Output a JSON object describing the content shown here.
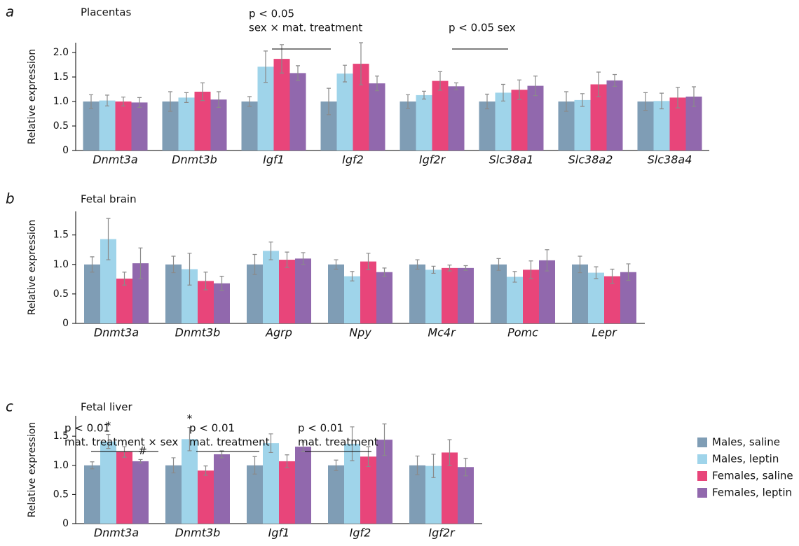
{
  "chart_data": [
    {
      "type": "bar",
      "panel": "a",
      "title": "Placentas",
      "ylabel": "Relative expression",
      "categories": [
        "Dnmt3a",
        "Dnmt3b",
        "Igf1",
        "Igf2",
        "Igf2r",
        "Slc38a1",
        "Slc38a2",
        "Slc38a4"
      ],
      "series": [
        {
          "color": "#7f9db5",
          "values": [
            1.0,
            1.0,
            1.0,
            1.0,
            1.0,
            1.0,
            1.0,
            1.0
          ],
          "errors": [
            0.14,
            0.2,
            0.1,
            0.27,
            0.14,
            0.15,
            0.2,
            0.18
          ]
        },
        {
          "color": "#9fd4ea",
          "values": [
            1.02,
            1.08,
            1.71,
            1.57,
            1.13,
            1.18,
            1.03,
            1.01
          ],
          "errors": [
            0.11,
            0.1,
            0.32,
            0.17,
            0.08,
            0.17,
            0.13,
            0.16
          ]
        },
        {
          "color": "#e8457a",
          "values": [
            1.0,
            1.2,
            1.87,
            1.77,
            1.42,
            1.24,
            1.35,
            1.08
          ],
          "errors": [
            0.09,
            0.18,
            0.29,
            0.43,
            0.19,
            0.2,
            0.25,
            0.21
          ]
        },
        {
          "color": "#9168ad",
          "values": [
            0.98,
            1.04,
            1.58,
            1.37,
            1.31,
            1.32,
            1.43,
            1.1
          ],
          "errors": [
            0.1,
            0.16,
            0.15,
            0.15,
            0.07,
            0.2,
            0.12,
            0.2
          ]
        }
      ],
      "ylim": [
        0,
        2.2
      ],
      "yticks": [
        0,
        0.5,
        {
          "value": 1,
          "label": "1.0"
        },
        1.5,
        {
          "value": 2,
          "label": "2.0"
        }
      ],
      "annotations": [
        {
          "lines": [
            "p < 0.05",
            "sex × mat. treatment"
          ]
        },
        {
          "lines": [
            "p < 0.05 sex"
          ]
        }
      ]
    },
    {
      "type": "bar",
      "panel": "b",
      "title": "Fetal brain",
      "ylabel": "Relative expression",
      "categories": [
        "Dnmt3a",
        "Dnmt3b",
        "Agrp",
        "Npy",
        "Mc4r",
        "Pomc",
        "Lepr"
      ],
      "series": [
        {
          "color": "#7f9db5",
          "values": [
            1.0,
            1.0,
            1.0,
            1.0,
            1.0,
            1.0,
            1.0
          ],
          "errors": [
            0.13,
            0.14,
            0.17,
            0.08,
            0.08,
            0.1,
            0.14
          ]
        },
        {
          "color": "#9fd4ea",
          "values": [
            1.43,
            0.92,
            1.23,
            0.8,
            0.91,
            0.79,
            0.86
          ],
          "errors": [
            0.35,
            0.27,
            0.15,
            0.08,
            0.06,
            0.09,
            0.1
          ]
        },
        {
          "color": "#e8457a",
          "values": [
            0.76,
            0.72,
            1.08,
            1.05,
            0.94,
            0.91,
            0.8
          ],
          "errors": [
            0.11,
            0.15,
            0.13,
            0.14,
            0.05,
            0.15,
            0.12
          ]
        },
        {
          "color": "#9168ad",
          "values": [
            1.02,
            0.68,
            1.1,
            0.87,
            0.94,
            1.07,
            0.87
          ],
          "errors": [
            0.26,
            0.12,
            0.1,
            0.07,
            0.04,
            0.18,
            0.14
          ]
        }
      ],
      "ylim": [
        0,
        1.9
      ],
      "yticks": [
        0,
        0.5,
        {
          "value": 1,
          "label": "1.0"
        },
        1.5
      ]
    },
    {
      "type": "bar",
      "panel": "c",
      "title": "Fetal liver",
      "ylabel": "Relative expression",
      "categories": [
        "Dnmt3a",
        "Dnmt3b",
        "Igf1",
        "Igf2",
        "Igf2r"
      ],
      "series": [
        {
          "name": "Males, saline",
          "color": "#7f9db5",
          "values": [
            1.0,
            1.0,
            1.0,
            1.0,
            1.0
          ],
          "errors": [
            0.06,
            0.13,
            0.15,
            0.09,
            0.16
          ]
        },
        {
          "name": "Males, leptin",
          "color": "#9fd4ea",
          "values": [
            1.41,
            1.45,
            1.38,
            1.37,
            0.99
          ],
          "errors": [
            0.12,
            0.2,
            0.16,
            0.29,
            0.2
          ]
        },
        {
          "name": "Females, saline",
          "color": "#e8457a",
          "values": [
            1.23,
            0.91,
            1.07,
            1.15,
            1.22
          ],
          "errors": [
            0.09,
            0.08,
            0.11,
            0.17,
            0.22
          ]
        },
        {
          "name": "Females, leptin",
          "color": "#9168ad",
          "values": [
            1.07,
            1.19,
            1.32,
            1.44,
            0.97
          ],
          "errors": [
            0.03,
            0.06,
            0.08,
            0.27,
            0.15
          ]
        }
      ],
      "ylim": [
        0,
        1.85
      ],
      "yticks": [
        0,
        0.5,
        {
          "value": 1,
          "label": "1.0"
        },
        1.5
      ],
      "annotations": [
        {
          "lines": [
            "p < 0.01",
            "mat. treatment × sex"
          ]
        },
        {
          "lines": [
            "p < 0.01",
            "mat. treatment"
          ]
        },
        {
          "lines": [
            "p < 0.01",
            "mat. treatment"
          ]
        }
      ],
      "markers": [
        {
          "text": "*"
        },
        {
          "text": "#"
        },
        {
          "text": "*"
        }
      ]
    }
  ]
}
